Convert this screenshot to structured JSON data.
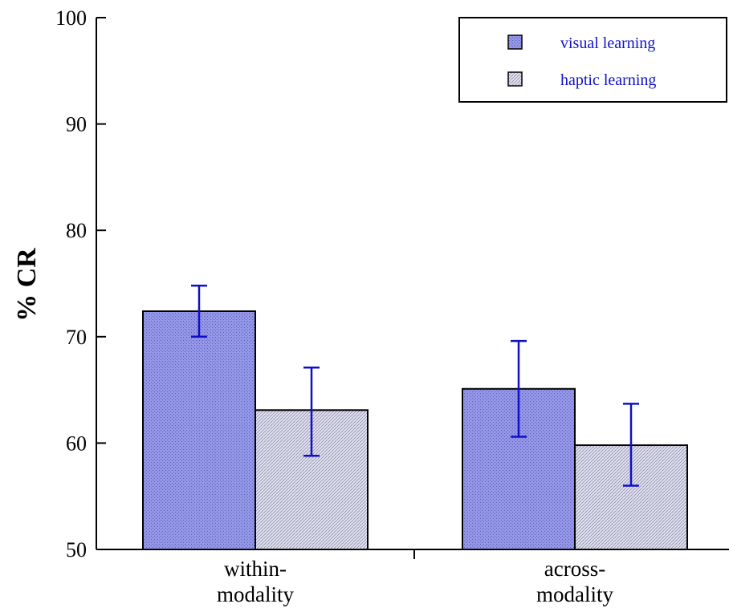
{
  "chart_data": {
    "type": "bar",
    "title": "",
    "xlabel": "",
    "ylabel": "% CR",
    "ylim": [
      50,
      100
    ],
    "yticks": [
      50,
      60,
      70,
      80,
      90,
      100
    ],
    "categories": [
      [
        "within-",
        "modality"
      ],
      [
        "across-",
        "modality"
      ]
    ],
    "series": [
      {
        "name": "visual learning",
        "values": [
          72.4,
          65.1
        ],
        "error": [
          [
            70.0,
            74.8
          ],
          [
            60.6,
            69.6
          ]
        ]
      },
      {
        "name": "haptic learning",
        "values": [
          63.1,
          59.8
        ],
        "error": [
          [
            58.8,
            67.1
          ],
          [
            56.0,
            63.7
          ]
        ]
      }
    ],
    "legend_position": "top-right",
    "grid": false,
    "colors": {
      "visual": "#8a8ce0",
      "haptic": "#d9d9ec",
      "error_bar": "#1010c8",
      "legend_text": "#1010c8"
    }
  }
}
